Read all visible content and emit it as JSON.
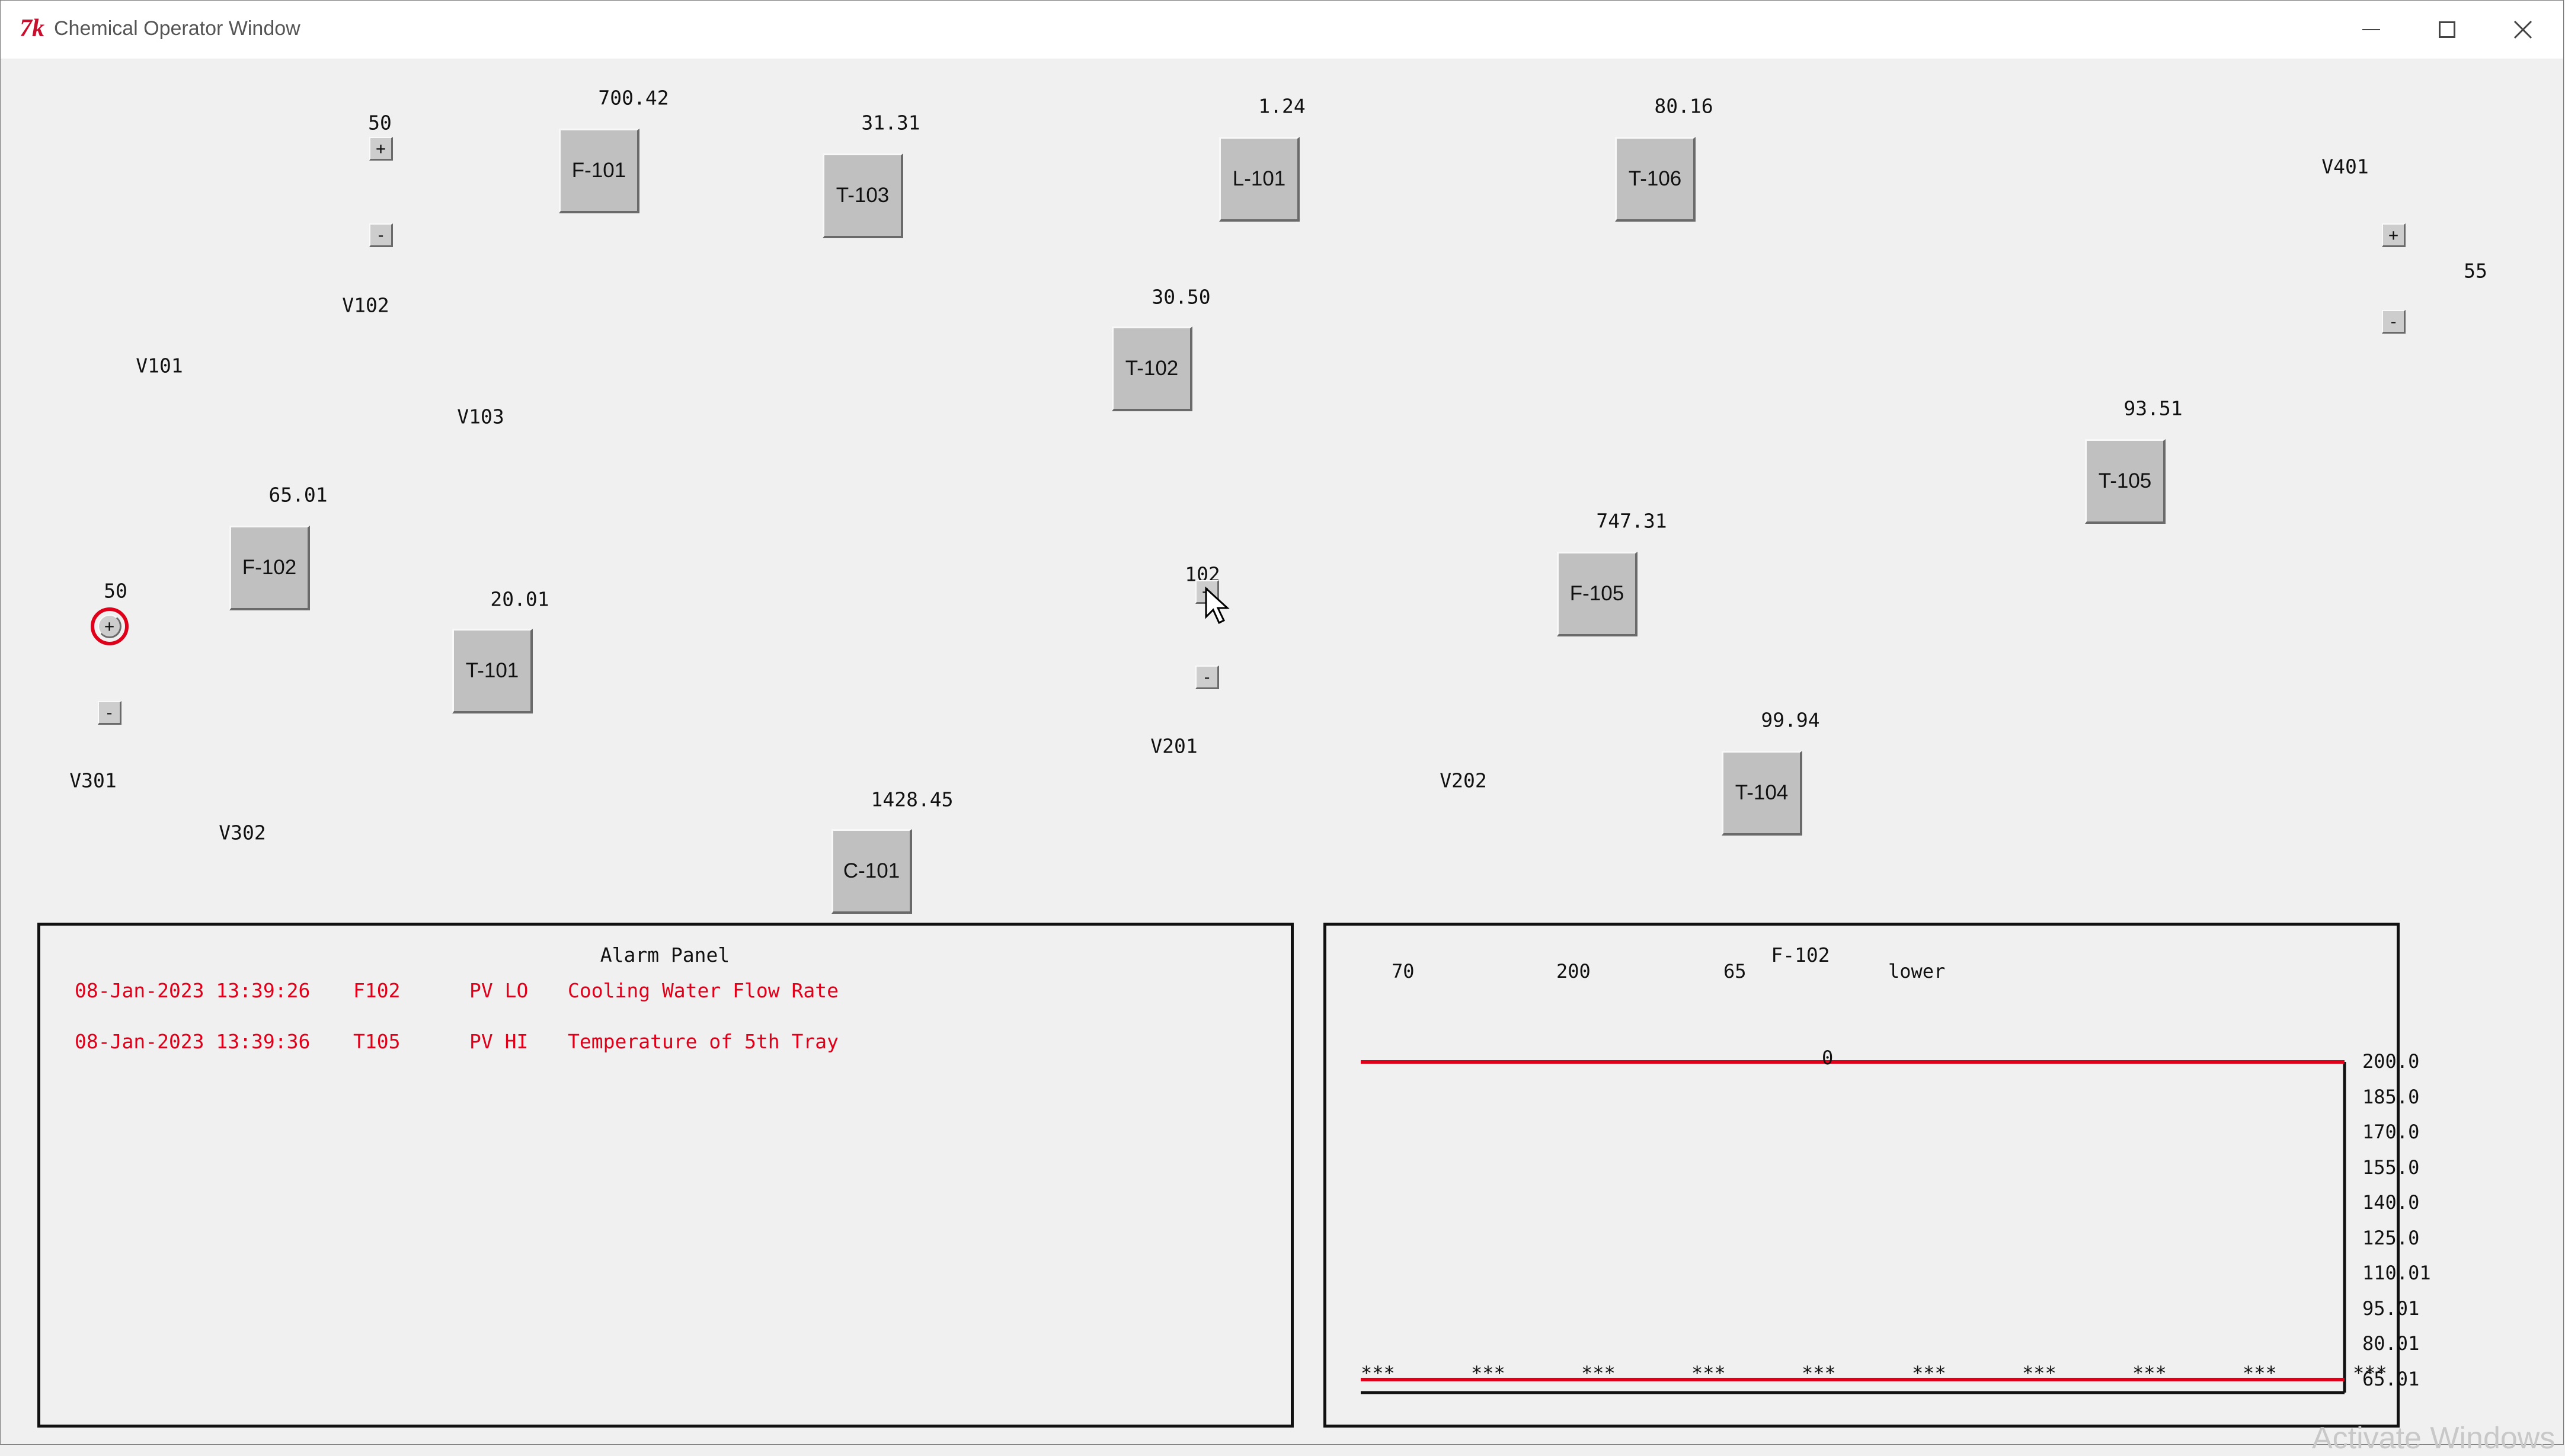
{
  "window": {
    "title": "Chemical Operator Window",
    "logo_text": "7k",
    "controls": [
      "minimize",
      "maximize",
      "close"
    ]
  },
  "units": [
    {
      "id": "F-101",
      "value": "700.42"
    },
    {
      "id": "T-103",
      "value": "31.31"
    },
    {
      "id": "L-101",
      "value": "1.24"
    },
    {
      "id": "T-106",
      "value": "80.16"
    },
    {
      "id": "T-102",
      "value": "30.50"
    },
    {
      "id": "T-105",
      "value": "93.51"
    },
    {
      "id": "F-102",
      "value": "65.01"
    },
    {
      "id": "T-101",
      "value": "20.01"
    },
    {
      "id": "F-105",
      "value": "747.31"
    },
    {
      "id": "T-104",
      "value": "99.94"
    },
    {
      "id": "C-101",
      "value": "1428.45"
    }
  ],
  "valves": [
    {
      "id": "V102",
      "setpoint": "50"
    },
    {
      "id": "V301",
      "setpoint": "50"
    },
    {
      "id": "V201",
      "setpoint": "102"
    },
    {
      "id": "V401",
      "setpoint": "55"
    }
  ],
  "valve_labels": [
    "V101",
    "V102",
    "V103",
    "V201",
    "V202",
    "V301",
    "V302",
    "V401"
  ],
  "controls": {
    "plus": "+",
    "minus": "-"
  },
  "alarm_panel": {
    "title": "Alarm Panel",
    "rows": [
      {
        "time": "08-Jan-2023 13:39:26",
        "tag": "F102",
        "type": "PV LO",
        "desc": "Cooling Water Flow Rate"
      },
      {
        "time": "08-Jan-2023 13:39:36",
        "tag": "T105",
        "type": "PV HI",
        "desc": "Temperature of 5th Tray"
      }
    ],
    "color": "#e0001a"
  },
  "trend_panel": {
    "title": "F-102",
    "header_values": [
      "70",
      "200",
      "65",
      "lower"
    ],
    "marker": "0",
    "y_ticks": [
      "200.0",
      "185.0",
      "170.0",
      "155.0",
      "140.0",
      "125.0",
      "110.01",
      "95.01",
      "80.01",
      "65.01"
    ],
    "x_marker": "***",
    "x_marker_count": 10,
    "line_color": "#e0001a"
  },
  "chart_data": {
    "type": "line",
    "title": "F-102",
    "ylim": [
      65.01,
      200.0
    ],
    "series": [
      {
        "name": "",
        "values": [
          200.0,
          200.0,
          200.0,
          200.0,
          200.0,
          200.0,
          200.0,
          200.0,
          200.0,
          200.0
        ]
      },
      {
        "name": "",
        "values": [
          65.01,
          65.01,
          65.01,
          65.01,
          65.01,
          65.01,
          65.01,
          65.01,
          65.01,
          65.01
        ]
      }
    ],
    "categories": [
      "***",
      "***",
      "***",
      "***",
      "***",
      "***",
      "***",
      "***",
      "***",
      "***"
    ]
  },
  "watermark": "Activate Windows"
}
